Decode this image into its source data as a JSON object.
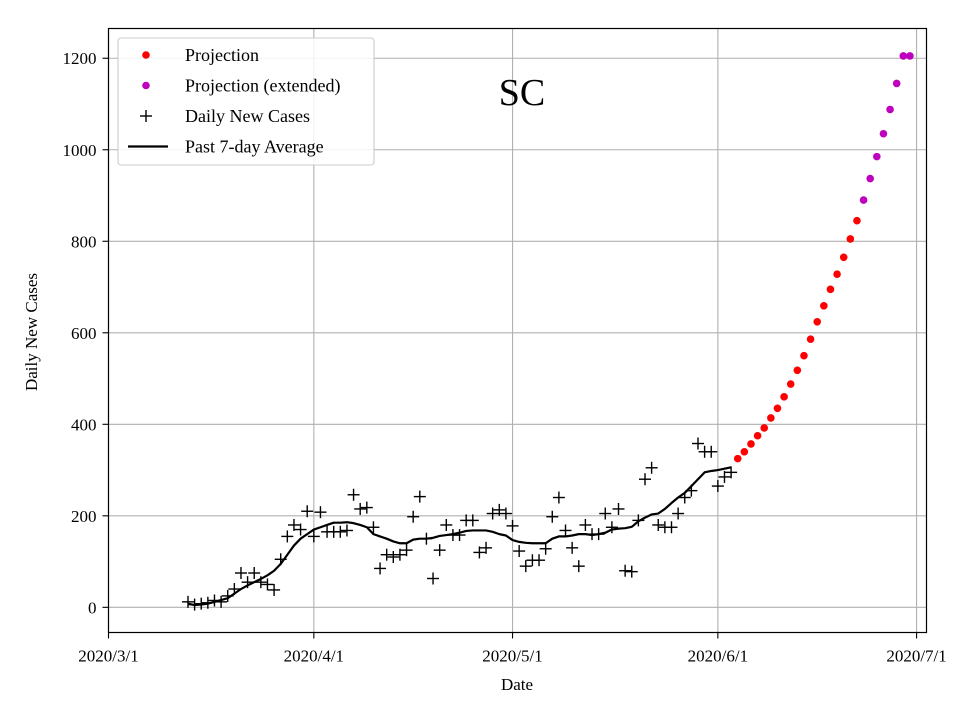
{
  "chart_data": {
    "type": "scatter",
    "title": "SC",
    "xlabel": "Date",
    "ylabel": "Daily New Cases",
    "grid": true,
    "legend_position": "top-left",
    "x_axis": {
      "unit": "days since 2020-03-01",
      "range": [
        0,
        123.5
      ],
      "ticks": [
        {
          "value": 0,
          "label": "2020/3/1"
        },
        {
          "value": 31,
          "label": "2020/4/1"
        },
        {
          "value": 61,
          "label": "2020/5/1"
        },
        {
          "value": 92,
          "label": "2020/6/1"
        },
        {
          "value": 122,
          "label": "2020/7/1"
        }
      ]
    },
    "y_axis": {
      "range": [
        -55,
        1265
      ],
      "ticks": [
        {
          "value": 0,
          "label": "0"
        },
        {
          "value": 200,
          "label": "200"
        },
        {
          "value": 400,
          "label": "400"
        },
        {
          "value": 600,
          "label": "600"
        },
        {
          "value": 800,
          "label": "800"
        },
        {
          "value": 1000,
          "label": "1000"
        },
        {
          "value": 1200,
          "label": "1200"
        }
      ]
    },
    "legend": [
      {
        "label": "Projection",
        "marker": "dot",
        "color": "#ff0000"
      },
      {
        "label": "Projection (extended)",
        "marker": "dot",
        "color": "#bf00bf"
      },
      {
        "label": "Daily New Cases",
        "marker": "plus",
        "color": "#000000"
      },
      {
        "label": "Past 7-day Average",
        "marker": "line",
        "color": "#000000"
      }
    ],
    "series": [
      {
        "name": "Daily New Cases",
        "style": "plus",
        "color": "#000000",
        "x": [
          12,
          13,
          14,
          15,
          16,
          17,
          18,
          19,
          20,
          21,
          22,
          23,
          24,
          25,
          26,
          27,
          28,
          29,
          30,
          31,
          32,
          33,
          34,
          35,
          36,
          37,
          38,
          39,
          40,
          41,
          42,
          43,
          44,
          45,
          46,
          47,
          48,
          49,
          50,
          51,
          52,
          53,
          54,
          55,
          56,
          57,
          58,
          59,
          60,
          61,
          62,
          63,
          64,
          65,
          66,
          67,
          68,
          69,
          70,
          71,
          72,
          73,
          74,
          75,
          76,
          77,
          78,
          79,
          80,
          81,
          82,
          83,
          84,
          85,
          86,
          87,
          88,
          89,
          90,
          91,
          92,
          93,
          94
        ],
        "y": [
          12,
          6,
          8,
          10,
          15,
          12,
          25,
          40,
          75,
          55,
          75,
          55,
          50,
          38,
          105,
          155,
          180,
          170,
          210,
          155,
          208,
          165,
          165,
          165,
          168,
          246,
          215,
          218,
          175,
          85,
          115,
          110,
          115,
          125,
          198,
          242,
          150,
          63,
          125,
          180,
          158,
          158,
          190,
          190,
          120,
          130,
          205,
          213,
          205,
          178,
          123,
          90,
          103,
          103,
          128,
          198,
          240,
          168,
          130,
          90,
          180,
          160,
          160,
          205,
          175,
          215,
          80,
          78,
          190,
          280,
          305,
          180,
          175,
          175,
          205,
          240,
          255,
          358,
          340,
          340,
          265,
          285,
          295
        ]
      },
      {
        "name": "Past 7-day Average",
        "style": "line",
        "color": "#000000",
        "x": [
          12,
          13,
          14,
          15,
          16,
          17,
          18,
          19,
          20,
          21,
          22,
          23,
          24,
          25,
          26,
          27,
          28,
          29,
          30,
          31,
          32,
          33,
          34,
          35,
          36,
          37,
          38,
          39,
          40,
          41,
          42,
          43,
          44,
          45,
          46,
          47,
          48,
          49,
          50,
          51,
          52,
          53,
          54,
          55,
          56,
          57,
          58,
          59,
          60,
          61,
          62,
          63,
          64,
          65,
          66,
          67,
          68,
          69,
          70,
          71,
          72,
          73,
          74,
          75,
          76,
          77,
          78,
          79,
          80,
          81,
          82,
          83,
          84,
          85,
          86,
          87,
          88,
          89,
          90,
          91,
          92,
          93,
          94
        ],
        "y": [
          8,
          5,
          6,
          8,
          12,
          16,
          20,
          30,
          40,
          48,
          55,
          62,
          70,
          80,
          95,
          115,
          135,
          150,
          160,
          170,
          175,
          180,
          185,
          185,
          186,
          184,
          180,
          175,
          160,
          155,
          150,
          144,
          140,
          140,
          148,
          150,
          150,
          152,
          156,
          158,
          160,
          163,
          167,
          168,
          168,
          168,
          165,
          160,
          157,
          147,
          143,
          141,
          140,
          140,
          140,
          150,
          155,
          155,
          157,
          160,
          160,
          158,
          160,
          163,
          170,
          172,
          173,
          176,
          188,
          196,
          203,
          205,
          215,
          228,
          240,
          250,
          265,
          280,
          295,
          298,
          300,
          303,
          306
        ]
      },
      {
        "name": "Projection",
        "style": "dot",
        "color": "#ff0000",
        "x": [
          95,
          96,
          97,
          98,
          99,
          100,
          101,
          102,
          103,
          104,
          105,
          106,
          107,
          108,
          109,
          110,
          111,
          112,
          113
        ],
        "y": [
          325,
          340,
          357,
          375,
          392,
          414,
          435,
          460,
          488,
          518,
          550,
          586,
          624,
          659,
          695,
          728,
          765,
          805,
          845
        ]
      },
      {
        "name": "Projection (extended)",
        "style": "dot",
        "color": "#bf00bf",
        "x": [
          114,
          115,
          116,
          117,
          118,
          119,
          120,
          121
        ],
        "y": [
          890,
          937,
          985,
          1035,
          1088,
          1145,
          1205,
          1205
        ]
      }
    ]
  }
}
